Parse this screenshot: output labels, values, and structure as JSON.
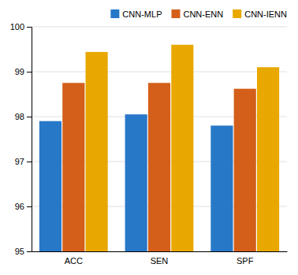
{
  "chart_data": {
    "type": "bar",
    "categories": [
      "ACC",
      "SEN",
      "SPF"
    ],
    "series": [
      {
        "name": "CNN-MLP",
        "color": "#2878C8",
        "values": [
          97.9,
          98.05,
          97.8
        ]
      },
      {
        "name": "CNN-ENN",
        "color": "#D45F1A",
        "values": [
          98.75,
          98.75,
          98.62
        ]
      },
      {
        "name": "CNN-IENN",
        "color": "#E8A800",
        "values": [
          99.44,
          99.6,
          99.1
        ]
      }
    ],
    "ylim": [
      95,
      100
    ],
    "yticks": [
      95,
      96,
      97,
      98,
      99,
      100
    ],
    "grid": true,
    "legend": "upper right"
  }
}
